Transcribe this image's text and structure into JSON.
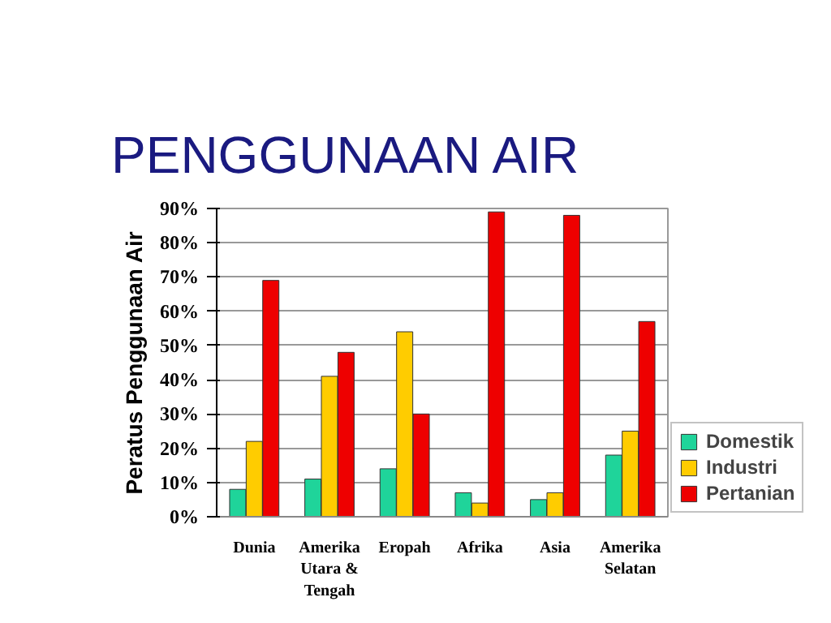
{
  "chart_data": {
    "type": "bar",
    "title": "PENGGUNAAN AIR",
    "ylabel": "Peratus Penggunaan Air",
    "categories": [
      "Dunia",
      "Amerika Utara & Tengah",
      "Eropah",
      "Afrika",
      "Asia",
      "Amerika Selatan"
    ],
    "series": [
      {
        "name": "Domestik",
        "color": "#1fd49a",
        "values": [
          8,
          11,
          14,
          7,
          5,
          18
        ]
      },
      {
        "name": "Industri",
        "color": "#ffcc00",
        "values": [
          22,
          41,
          54,
          4,
          7,
          25
        ]
      },
      {
        "name": "Pertanian",
        "color": "#ee0000",
        "values": [
          69,
          48,
          30,
          89,
          88,
          57
        ]
      }
    ],
    "ylim": [
      0,
      90
    ],
    "yticks": [
      {
        "value": 0,
        "label": "0%"
      },
      {
        "value": 10,
        "label": "10%"
      },
      {
        "value": 20,
        "label": "20%"
      },
      {
        "value": 30,
        "label": "30%"
      },
      {
        "value": 40,
        "label": "40%"
      },
      {
        "value": 50,
        "label": "50%"
      },
      {
        "value": 60,
        "label": "60%"
      },
      {
        "value": 70,
        "label": "70%"
      },
      {
        "value": 80,
        "label": "80%"
      },
      {
        "value": 90,
        "label": "90%"
      }
    ],
    "grid": "y",
    "legend": "right"
  }
}
